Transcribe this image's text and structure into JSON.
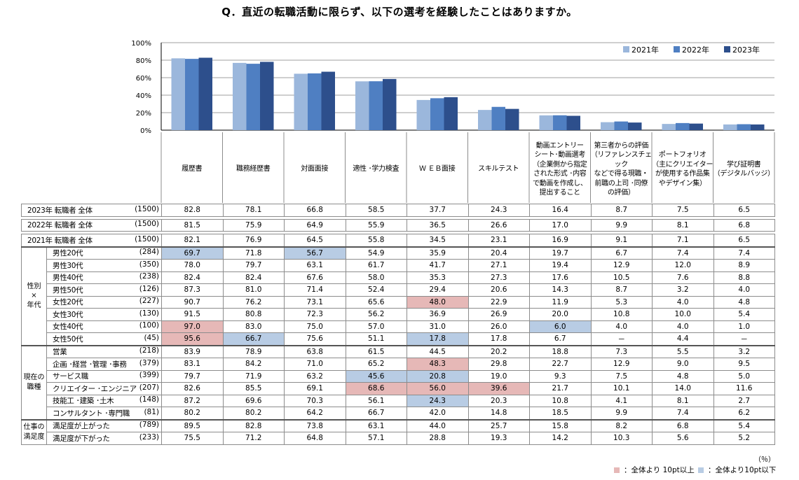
{
  "title": "Q．直近の転職活動に限らず、以下の選考を経験したことはありますか。",
  "unit": "（％）",
  "legend_high": "：全体より 10pt以上",
  "legend_low": "：全体より10pt以下",
  "colors": {
    "y2021": "#9bb7dc",
    "y2022": "#4f7fc2",
    "y2023": "#2d4f8c",
    "pink": "#e6b8b7",
    "blue": "#b8cce4"
  },
  "chart_data": {
    "type": "bar",
    "categories": [
      "履歴書",
      "職務経歴書",
      "対面面接",
      "適性 ･学力検査",
      "Ｗ ＥＢ面接",
      "スキルテスト",
      "動画エントリー\nシート･動画選考\n（企業側から指定\nされた形式 ･内容\nで動画を作成し、\n提出すること",
      "第三者からの評価\n（リファレンスチェック\nなどで得る現職・\n前職の上司 ･同僚\nの評価）",
      "ポートフォリオ\n（主にクリエイター\nが使用する作品集\nやデザイン集）",
      "学び証明書\n（デジタルバッジ）"
    ],
    "series": [
      {
        "name": "2021年",
        "values": [
          82.1,
          76.9,
          64.5,
          55.8,
          34.5,
          23.1,
          16.9,
          9.1,
          7.1,
          6.5
        ]
      },
      {
        "name": "2022年",
        "values": [
          81.5,
          75.9,
          64.9,
          55.9,
          36.5,
          26.6,
          17.0,
          9.9,
          8.1,
          6.8
        ]
      },
      {
        "name": "2023年",
        "values": [
          82.8,
          78.1,
          66.8,
          58.5,
          37.7,
          24.3,
          16.4,
          8.7,
          7.5,
          6.5
        ]
      }
    ],
    "yticks": [
      "0%",
      "20%",
      "40%",
      "60%",
      "80%",
      "100%"
    ],
    "ylim": [
      0,
      100
    ],
    "grid": true,
    "legend_position": "top-right"
  },
  "table": {
    "total_rows": [
      {
        "label": "2023年 転職者 全体",
        "n": "(1500)",
        "values": [
          "82.8",
          "78.1",
          "66.8",
          "58.5",
          "37.7",
          "24.3",
          "16.4",
          "8.7",
          "7.5",
          "6.5"
        ],
        "marks": [
          "",
          "",
          "",
          "",
          "",
          "",
          "",
          "",
          "",
          ""
        ]
      },
      {
        "label": "2022年 転職者 全体",
        "n": "(1500)",
        "values": [
          "81.5",
          "75.9",
          "64.9",
          "55.9",
          "36.5",
          "26.6",
          "17.0",
          "9.9",
          "8.1",
          "6.8"
        ],
        "marks": [
          "",
          "",
          "",
          "",
          "",
          "",
          "",
          "",
          "",
          ""
        ]
      },
      {
        "label": "2021年 転職者 全体",
        "n": "(1500)",
        "values": [
          "82.1",
          "76.9",
          "64.5",
          "55.8",
          "34.5",
          "23.1",
          "16.9",
          "9.1",
          "7.1",
          "6.5"
        ],
        "marks": [
          "",
          "",
          "",
          "",
          "",
          "",
          "",
          "",
          "",
          ""
        ]
      }
    ],
    "groups": [
      {
        "name": "性別\n×\n年代",
        "rows": [
          {
            "label": "男性20代",
            "n": "(284)",
            "values": [
              "69.7",
              "71.8",
              "56.7",
              "54.9",
              "35.9",
              "20.4",
              "19.7",
              "6.7",
              "7.4",
              "7.4"
            ],
            "marks": [
              "blue",
              "",
              "blue",
              "",
              "",
              "",
              "",
              "",
              "",
              ""
            ]
          },
          {
            "label": "男性30代",
            "n": "(350)",
            "values": [
              "78.0",
              "79.7",
              "63.1",
              "61.7",
              "41.7",
              "27.1",
              "19.4",
              "12.9",
              "12.0",
              "8.9"
            ],
            "marks": [
              "",
              "",
              "",
              "",
              "",
              "",
              "",
              "",
              "",
              ""
            ]
          },
          {
            "label": "男性40代",
            "n": "(238)",
            "values": [
              "82.4",
              "82.4",
              "67.6",
              "58.0",
              "35.3",
              "27.3",
              "17.6",
              "10.5",
              "7.6",
              "8.8"
            ],
            "marks": [
              "",
              "",
              "",
              "",
              "",
              "",
              "",
              "",
              "",
              ""
            ]
          },
          {
            "label": "男性50代",
            "n": "(126)",
            "values": [
              "87.3",
              "81.0",
              "71.4",
              "52.4",
              "29.4",
              "20.6",
              "14.3",
              "8.7",
              "3.2",
              "4.0"
            ],
            "marks": [
              "",
              "",
              "",
              "",
              "",
              "",
              "",
              "",
              "",
              ""
            ]
          },
          {
            "label": "女性20代",
            "n": "(227)",
            "values": [
              "90.7",
              "76.2",
              "73.1",
              "65.6",
              "48.0",
              "22.9",
              "11.9",
              "5.3",
              "4.0",
              "4.8"
            ],
            "marks": [
              "",
              "",
              "",
              "",
              "pink",
              "",
              "",
              "",
              "",
              ""
            ]
          },
          {
            "label": "女性30代",
            "n": "(130)",
            "values": [
              "91.5",
              "80.8",
              "72.3",
              "56.2",
              "36.9",
              "26.9",
              "20.0",
              "10.8",
              "10.0",
              "5.4"
            ],
            "marks": [
              "",
              "",
              "",
              "",
              "",
              "",
              "",
              "",
              "",
              ""
            ]
          },
          {
            "label": "女性40代",
            "n": "(100)",
            "values": [
              "97.0",
              "83.0",
              "75.0",
              "57.0",
              "31.0",
              "26.0",
              "6.0",
              "4.0",
              "4.0",
              "1.0"
            ],
            "marks": [
              "pink",
              "",
              "",
              "",
              "",
              "",
              "blue",
              "",
              "",
              ""
            ]
          },
          {
            "label": "女性50代",
            "n": "(45)",
            "values": [
              "95.6",
              "66.7",
              "75.6",
              "51.1",
              "17.8",
              "17.8",
              "6.7",
              "－",
              "4.4",
              "－"
            ],
            "marks": [
              "pink",
              "blue",
              "",
              "",
              "blue",
              "",
              "",
              "",
              "",
              ""
            ]
          }
        ]
      },
      {
        "name": "現在の\n職種",
        "rows": [
          {
            "label": "営業",
            "n": "(218)",
            "values": [
              "83.9",
              "78.9",
              "63.8",
              "61.5",
              "44.5",
              "20.2",
              "18.8",
              "7.3",
              "5.5",
              "3.2"
            ],
            "marks": [
              "",
              "",
              "",
              "",
              "",
              "",
              "",
              "",
              "",
              ""
            ]
          },
          {
            "label": "企画 ･経営 ･管理 ･事務",
            "n": "(379)",
            "values": [
              "83.1",
              "84.2",
              "71.0",
              "65.2",
              "48.3",
              "29.8",
              "22.7",
              "12.9",
              "9.0",
              "9.5"
            ],
            "marks": [
              "",
              "",
              "",
              "",
              "pink",
              "",
              "",
              "",
              "",
              ""
            ]
          },
          {
            "label": "サービス職",
            "n": "(399)",
            "values": [
              "79.7",
              "71.9",
              "63.2",
              "45.6",
              "20.8",
              "19.0",
              "9.3",
              "7.5",
              "4.8",
              "5.0"
            ],
            "marks": [
              "",
              "",
              "",
              "blue",
              "blue",
              "",
              "",
              "",
              "",
              ""
            ]
          },
          {
            "label": "クリエイター ･エンジニア",
            "n": "(207)",
            "values": [
              "82.6",
              "85.5",
              "69.1",
              "68.6",
              "56.0",
              "39.6",
              "21.7",
              "10.1",
              "14.0",
              "11.6"
            ],
            "marks": [
              "",
              "",
              "",
              "pink",
              "pink",
              "pink",
              "",
              "",
              "",
              ""
            ]
          },
          {
            "label": "技能工 ･建築 ･土木",
            "n": "(148)",
            "values": [
              "87.2",
              "69.6",
              "70.3",
              "56.1",
              "24.3",
              "20.3",
              "10.8",
              "4.1",
              "8.1",
              "2.7"
            ],
            "marks": [
              "",
              "",
              "",
              "",
              "blue",
              "",
              "",
              "",
              "",
              ""
            ]
          },
          {
            "label": "コンサルタント ･専門職",
            "n": "(81)",
            "values": [
              "80.2",
              "80.2",
              "64.2",
              "66.7",
              "42.0",
              "14.8",
              "18.5",
              "9.9",
              "7.4",
              "6.2"
            ],
            "marks": [
              "",
              "",
              "",
              "",
              "",
              "",
              "",
              "",
              "",
              ""
            ]
          }
        ]
      },
      {
        "name": "仕事の\n満足度",
        "rows": [
          {
            "label": "満足度が上がった",
            "n": "(789)",
            "values": [
              "89.5",
              "82.8",
              "73.8",
              "63.1",
              "44.0",
              "25.7",
              "15.8",
              "8.2",
              "6.8",
              "5.4"
            ],
            "marks": [
              "",
              "",
              "",
              "",
              "",
              "",
              "",
              "",
              "",
              ""
            ]
          },
          {
            "label": "満足度が下がった",
            "n": "(233)",
            "values": [
              "75.5",
              "71.2",
              "64.8",
              "57.1",
              "28.8",
              "19.3",
              "14.2",
              "10.3",
              "5.6",
              "5.2"
            ],
            "marks": [
              "",
              "",
              "",
              "",
              "",
              "",
              "",
              "",
              "",
              ""
            ]
          }
        ]
      }
    ]
  }
}
